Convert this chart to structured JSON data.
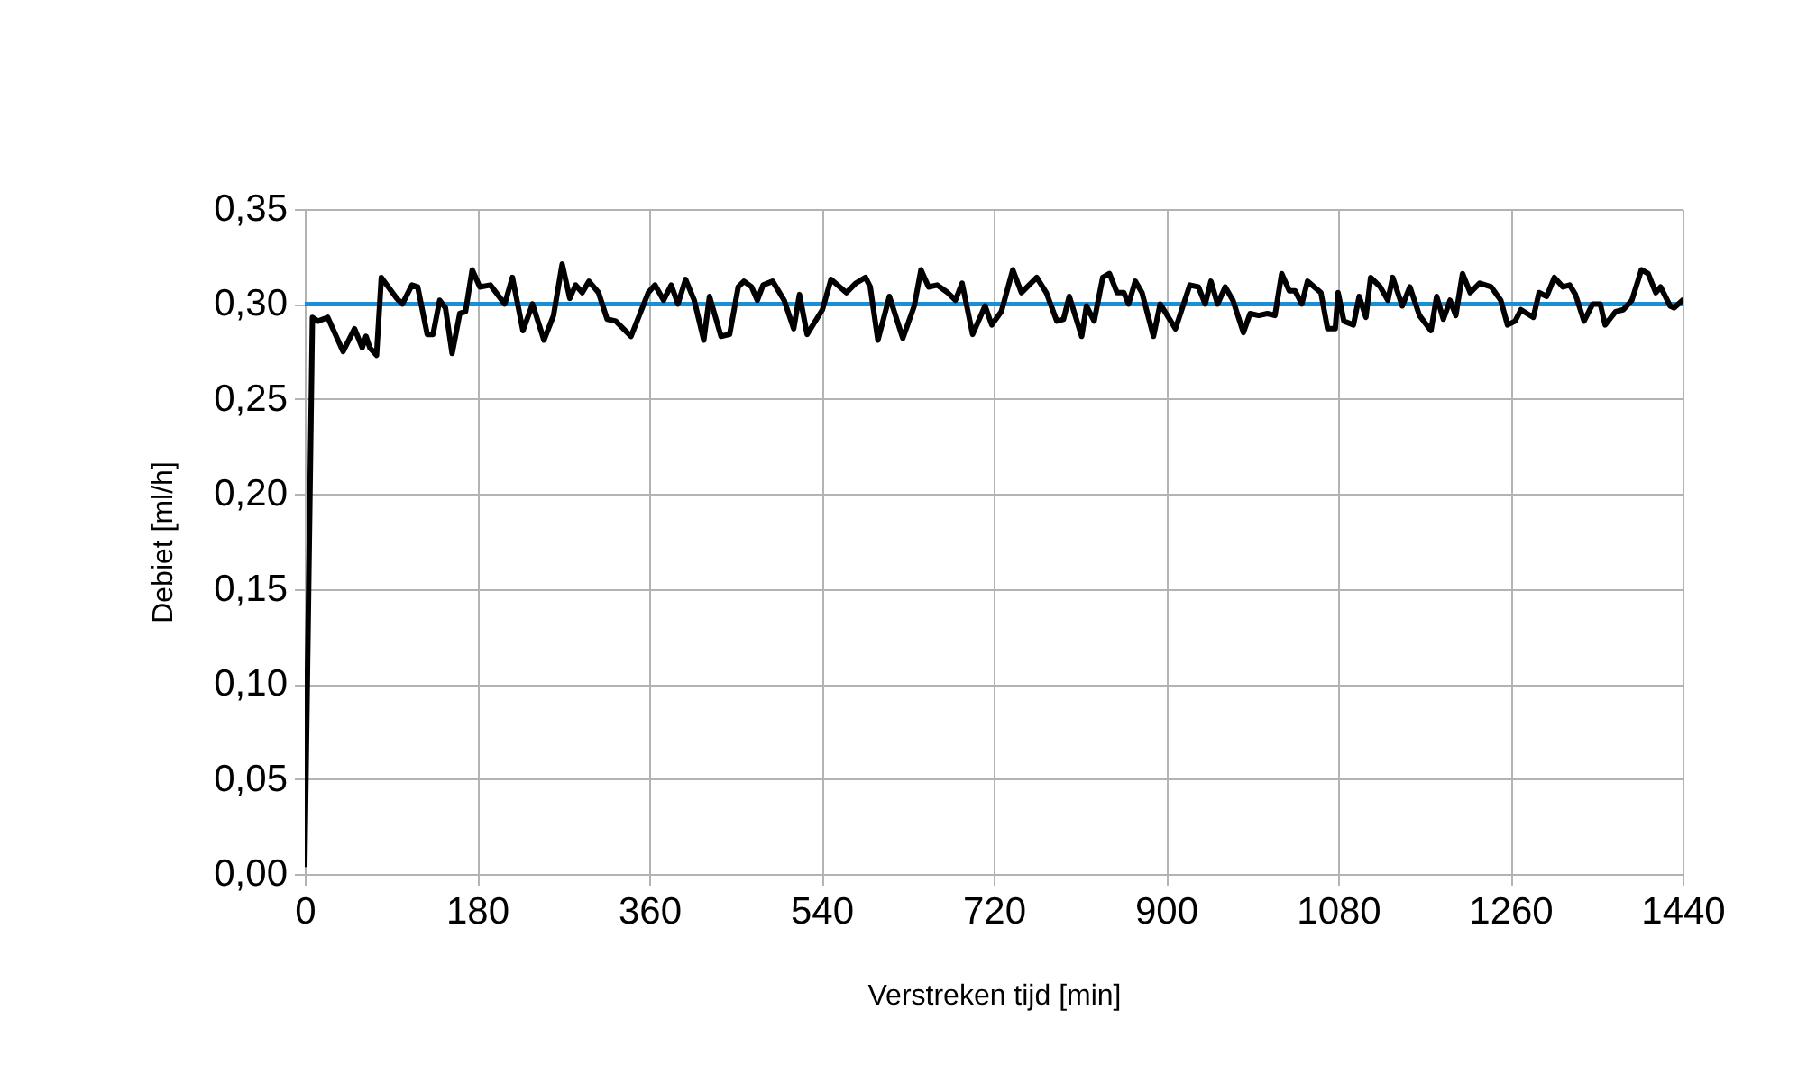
{
  "chart_data": {
    "type": "line",
    "xlabel": "Verstreken tijd [min]",
    "ylabel": "Debiet [ml/h]",
    "xlim": [
      0,
      1440
    ],
    "xticks": [
      0,
      180,
      360,
      540,
      720,
      900,
      1080,
      1260,
      1440
    ],
    "ylim": [
      0,
      0.35
    ],
    "yticks": [
      {
        "value": 0,
        "label": "0,00"
      },
      {
        "value": 0.05,
        "label": "0,05"
      },
      {
        "value": 0.1,
        "label": "0,10"
      },
      {
        "value": 0.15,
        "label": "0,15"
      },
      {
        "value": 0.2,
        "label": "0,20"
      },
      {
        "value": 0.25,
        "label": "0,25"
      },
      {
        "value": 0.3,
        "label": "0,30"
      },
      {
        "value": 0.35,
        "label": "0,35"
      }
    ],
    "grid": true,
    "legend": false,
    "marker": "none",
    "line_style": "solid",
    "ref_lines": [
      {
        "axis": "y",
        "value": 0.3,
        "color": "#1a8fd6"
      }
    ],
    "series": [
      {
        "color": "#000000",
        "x": [
          0,
          8,
          14,
          24,
          40,
          52,
          60,
          64,
          68,
          75,
          80,
          96,
          102,
          112,
          118,
          128,
          134,
          141,
          147,
          154,
          162,
          168,
          175,
          183,
          194,
          209,
          217,
          228,
          238,
          250,
          260,
          269,
          277,
          283,
          290,
          297,
          307,
          316,
          325,
          341,
          359,
          366,
          375,
          383,
          390,
          398,
          407,
          417,
          423,
          435,
          444,
          453,
          459,
          467,
          473,
          479,
          489,
          501,
          511,
          517,
          525,
          541,
          550,
          566,
          576,
          586,
          591,
          599,
          611,
          625,
          637,
          644,
          652,
          661,
          672,
          680,
          687,
          698,
          711,
          718,
          728,
          740,
          749,
          765,
          775,
          786,
          793,
          799,
          812,
          817,
          825,
          834,
          841,
          849,
          856,
          861,
          868,
          875,
          887,
          894,
          910,
          925,
          934,
          941,
          947,
          954,
          962,
          970,
          981,
          988,
          997,
          1006,
          1014,
          1021,
          1029,
          1035,
          1042,
          1048,
          1062,
          1069,
          1077,
          1080,
          1086,
          1096,
          1102,
          1109,
          1114,
          1124,
          1132,
          1137,
          1147,
          1155,
          1165,
          1177,
          1183,
          1190,
          1197,
          1203,
          1210,
          1218,
          1228,
          1240,
          1250,
          1257,
          1265,
          1271,
          1284,
          1290,
          1298,
          1306,
          1315,
          1322,
          1328,
          1337,
          1346,
          1354,
          1359,
          1370,
          1378,
          1387,
          1397,
          1404,
          1412,
          1417,
          1427,
          1431,
          1440
        ],
        "values": [
          0.005,
          0.293,
          0.291,
          0.293,
          0.275,
          0.287,
          0.277,
          0.283,
          0.277,
          0.273,
          0.314,
          0.303,
          0.3,
          0.31,
          0.309,
          0.284,
          0.284,
          0.302,
          0.298,
          0.274,
          0.295,
          0.296,
          0.318,
          0.309,
          0.31,
          0.3,
          0.314,
          0.286,
          0.3,
          0.281,
          0.294,
          0.321,
          0.303,
          0.31,
          0.306,
          0.312,
          0.306,
          0.292,
          0.291,
          0.283,
          0.306,
          0.31,
          0.302,
          0.31,
          0.3,
          0.313,
          0.302,
          0.281,
          0.304,
          0.283,
          0.284,
          0.309,
          0.312,
          0.309,
          0.302,
          0.31,
          0.312,
          0.302,
          0.287,
          0.305,
          0.284,
          0.297,
          0.313,
          0.306,
          0.311,
          0.314,
          0.309,
          0.281,
          0.304,
          0.282,
          0.299,
          0.318,
          0.309,
          0.31,
          0.306,
          0.302,
          0.311,
          0.284,
          0.299,
          0.289,
          0.296,
          0.318,
          0.306,
          0.314,
          0.306,
          0.291,
          0.292,
          0.304,
          0.283,
          0.299,
          0.291,
          0.314,
          0.316,
          0.306,
          0.306,
          0.3,
          0.312,
          0.306,
          0.283,
          0.3,
          0.287,
          0.31,
          0.309,
          0.3,
          0.312,
          0.3,
          0.309,
          0.302,
          0.285,
          0.295,
          0.294,
          0.295,
          0.294,
          0.316,
          0.307,
          0.307,
          0.3,
          0.312,
          0.306,
          0.287,
          0.287,
          0.306,
          0.291,
          0.289,
          0.304,
          0.293,
          0.314,
          0.309,
          0.302,
          0.314,
          0.299,
          0.309,
          0.294,
          0.286,
          0.304,
          0.292,
          0.302,
          0.294,
          0.316,
          0.306,
          0.311,
          0.309,
          0.302,
          0.289,
          0.291,
          0.297,
          0.293,
          0.306,
          0.304,
          0.314,
          0.309,
          0.31,
          0.305,
          0.291,
          0.3,
          0.3,
          0.289,
          0.296,
          0.297,
          0.302,
          0.318,
          0.316,
          0.306,
          0.309,
          0.299,
          0.298,
          0.302
        ]
      }
    ]
  }
}
